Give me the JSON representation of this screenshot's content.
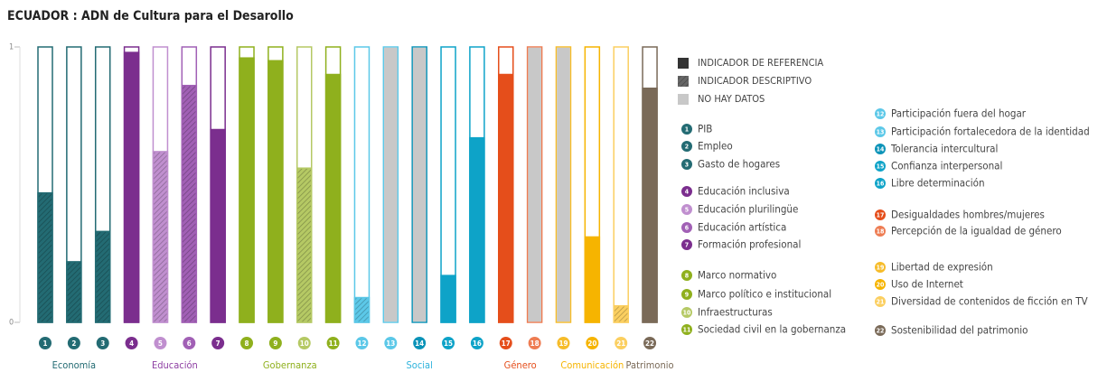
{
  "chart_data": {
    "type": "bar",
    "title": "ECUADOR : ADN de Cultura para el Desarollo",
    "ylim": [
      0,
      1
    ],
    "yticks": [
      0,
      1
    ],
    "categories": [
      "1",
      "2",
      "3",
      "4",
      "5",
      "6",
      "7",
      "8",
      "9",
      "10",
      "11",
      "12",
      "13",
      "14",
      "15",
      "16",
      "17",
      "18",
      "19",
      "20",
      "21",
      "22"
    ],
    "values": [
      0.47,
      0.22,
      0.33,
      0.98,
      0.62,
      0.86,
      0.7,
      0.96,
      0.95,
      0.56,
      0.9,
      0.09,
      null,
      null,
      0.17,
      0.67,
      0.9,
      null,
      null,
      0.31,
      0.06,
      0.85
    ],
    "kinds": [
      "descriptive",
      "descriptive",
      "descriptive",
      "reference",
      "descriptive",
      "descriptive",
      "reference",
      "reference",
      "reference",
      "descriptive",
      "reference",
      "descriptive",
      "none",
      "none",
      "reference",
      "reference",
      "reference",
      "none",
      "none",
      "reference",
      "descriptive",
      "reference"
    ],
    "colors": [
      "#236b73",
      "#236b73",
      "#236b73",
      "#7b2e8e",
      "#c08fcf",
      "#a160b5",
      "#7b2e8e",
      "#8fb01d",
      "#8fb01d",
      "#b5c964",
      "#8fb01d",
      "#5cc8e8",
      "#5cc8e8",
      "#0b93b8",
      "#0ea3c8",
      "#0ea3c8",
      "#e54e1b",
      "#ee7c52",
      "#f6bc2a",
      "#f6b400",
      "#fbcf60",
      "#7a6a58"
    ],
    "indicator_names": [
      "PIB",
      "Empleo",
      "Gasto de hogares",
      "Educación inclusiva",
      "Educación plurilingüe",
      "Educación artística",
      "Formación profesional",
      "Marco normativo",
      "Marco político e institucional",
      "Infraestructuras",
      "Sociedad civil en la gobernanza",
      "Participación fuera del hogar",
      "Participación fortalecedora de la identidad",
      "Tolerancia intercultural",
      "Confianza interpersonal",
      "Libre determinación",
      "Desigualdades hombres/mujeres",
      "Percepción de la igualdad de género",
      "Libertad de expresión",
      "Uso de Internet",
      "Diversidad de contenidos de ficción en TV",
      "Sostenibilidad del patrimonio"
    ],
    "groups": [
      {
        "name": "Economía",
        "color": "#236b73",
        "members": [
          "1",
          "2",
          "3"
        ]
      },
      {
        "name": "Educación",
        "color": "#8e3fa3",
        "members": [
          "4",
          "5",
          "6",
          "7"
        ]
      },
      {
        "name": "Gobernanza",
        "color": "#8fb01d",
        "members": [
          "8",
          "9",
          "10",
          "11"
        ]
      },
      {
        "name": "Social",
        "color": "#2eb3dc",
        "members": [
          "12",
          "13",
          "14",
          "15",
          "16"
        ]
      },
      {
        "name": "Género",
        "color": "#e54e1b",
        "members": [
          "17",
          "18"
        ]
      },
      {
        "name": "Comunicación",
        "color": "#f6b400",
        "members": [
          "19",
          "20",
          "21"
        ]
      },
      {
        "name": "Patrimonio",
        "color": "#7a6a58",
        "members": [
          "22"
        ]
      }
    ],
    "legend": [
      {
        "label": "INDICADOR DE REFERENCIA",
        "kind": "reference"
      },
      {
        "label": "INDICADOR DESCRIPTIVO",
        "kind": "descriptive"
      },
      {
        "label": "NO HAY DATOS",
        "kind": "none"
      }
    ]
  }
}
